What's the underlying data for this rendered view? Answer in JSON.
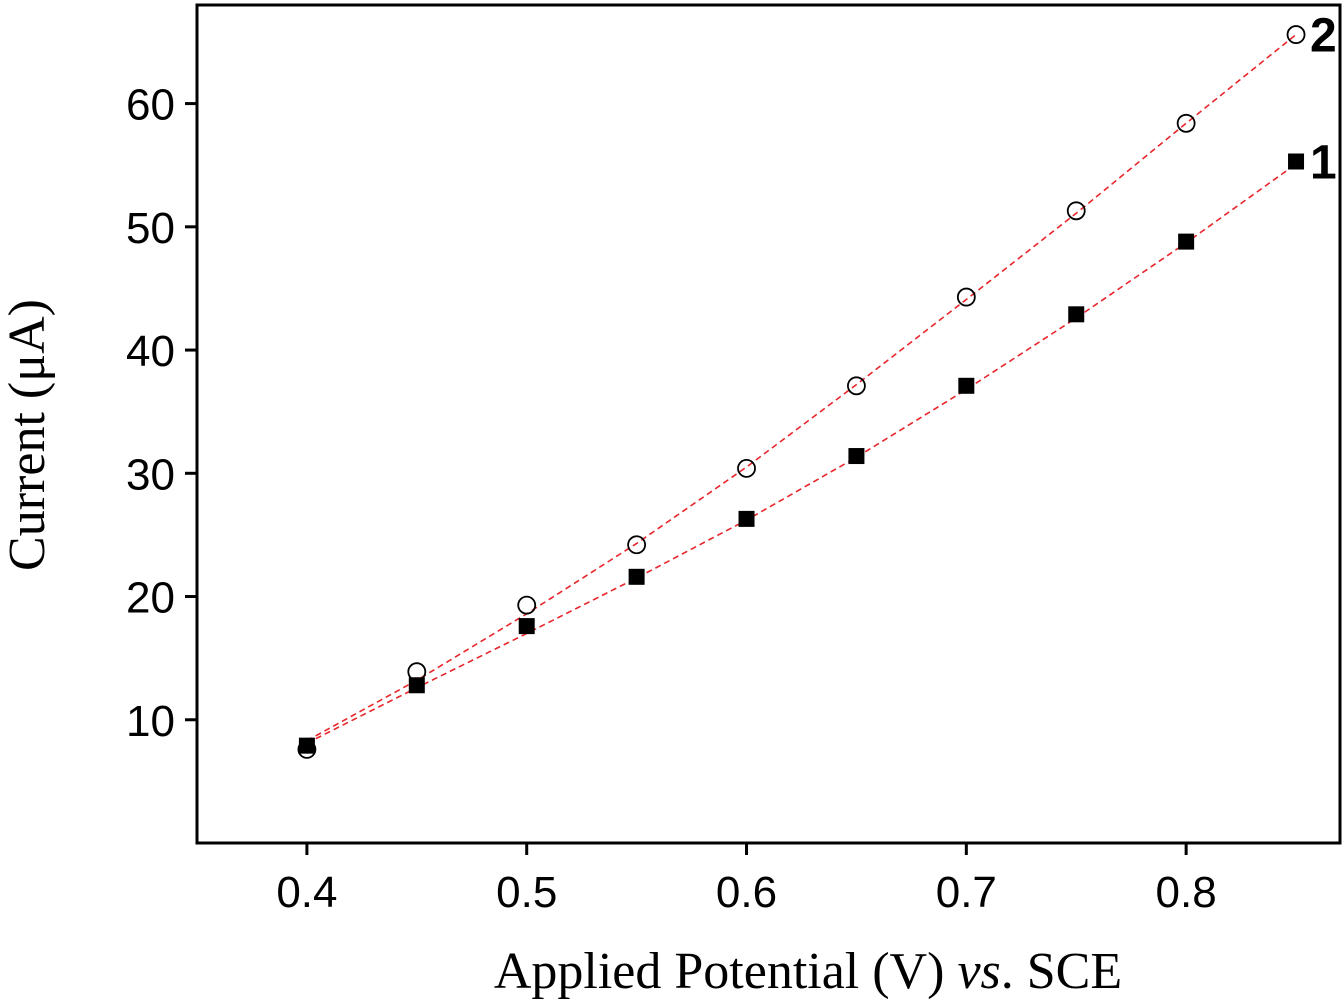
{
  "chart_data": {
    "type": "scatter",
    "title": "",
    "xlabel": {
      "main": "Applied Potential (V) ",
      "italic": "vs",
      "tail": ". SCE"
    },
    "ylabel": "Current (μA)",
    "xlim": [
      0.35,
      0.87
    ],
    "ylim": [
      0,
      68
    ],
    "xticks": [
      "0.4",
      "0.5",
      "0.6",
      "0.7",
      "0.8"
    ],
    "yticks": [
      "10",
      "20",
      "30",
      "40",
      "50",
      "60"
    ],
    "xtick_values": [
      0.4,
      0.5,
      0.6,
      0.7,
      0.8
    ],
    "ytick_values": [
      10,
      20,
      30,
      40,
      50,
      60
    ],
    "x": [
      0.4,
      0.45,
      0.5,
      0.55,
      0.6,
      0.65,
      0.7,
      0.75,
      0.8,
      0.85
    ],
    "series": [
      {
        "name": "1",
        "marker": "filled-square",
        "values": [
          7.9,
          12.8,
          17.6,
          21.6,
          26.3,
          31.4,
          37.1,
          42.9,
          48.8,
          55.3
        ],
        "fit": [
          8.1,
          12.6,
          17.0,
          21.5,
          26.2,
          31.3,
          36.8,
          42.6,
          48.7,
          55.1
        ]
      },
      {
        "name": "2",
        "marker": "open-circle",
        "values": [
          7.6,
          13.9,
          19.3,
          24.2,
          30.4,
          37.1,
          44.3,
          51.3,
          58.4,
          65.6
        ],
        "fit": [
          8.3,
          13.2,
          18.6,
          24.3,
          30.5,
          37.2,
          44.1,
          51.1,
          58.4,
          65.6
        ]
      }
    ],
    "fit_color": "#e8252a",
    "marker_color": "#000000"
  }
}
